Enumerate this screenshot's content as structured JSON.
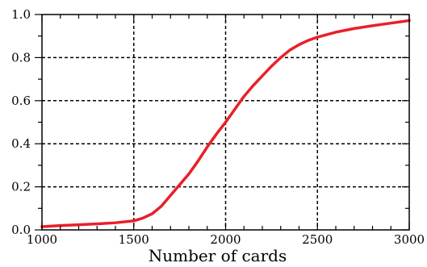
{
  "chart_data": {
    "type": "line",
    "title": "",
    "xlabel": "Number of cards",
    "ylabel": "",
    "xlim": [
      1000,
      3000
    ],
    "ylim": [
      0.0,
      1.0
    ],
    "grid": true,
    "x_ticks": [
      1000,
      1500,
      2000,
      2500,
      3000
    ],
    "x_tick_labels": [
      "1000",
      "1500",
      "2000",
      "2500",
      "3000"
    ],
    "y_ticks": [
      0.0,
      0.2,
      0.4,
      0.6,
      0.8,
      1.0
    ],
    "y_tick_labels": [
      "0.0",
      "0.2",
      "0.4",
      "0.6",
      "0.8",
      "1.0"
    ],
    "series": [
      {
        "color": "#e8202a",
        "x": [
          1000,
          1100,
          1200,
          1300,
          1400,
          1500,
          1550,
          1600,
          1650,
          1700,
          1750,
          1800,
          1850,
          1900,
          1950,
          2000,
          2050,
          2100,
          2150,
          2200,
          2250,
          2300,
          2350,
          2400,
          2450,
          2500,
          2600,
          2700,
          2800,
          2900,
          3000
        ],
        "y": [
          0.015,
          0.02,
          0.024,
          0.028,
          0.033,
          0.042,
          0.055,
          0.075,
          0.11,
          0.16,
          0.21,
          0.26,
          0.32,
          0.385,
          0.445,
          0.5,
          0.56,
          0.62,
          0.67,
          0.715,
          0.76,
          0.8,
          0.835,
          0.86,
          0.88,
          0.895,
          0.918,
          0.935,
          0.948,
          0.96,
          0.972
        ]
      }
    ]
  }
}
